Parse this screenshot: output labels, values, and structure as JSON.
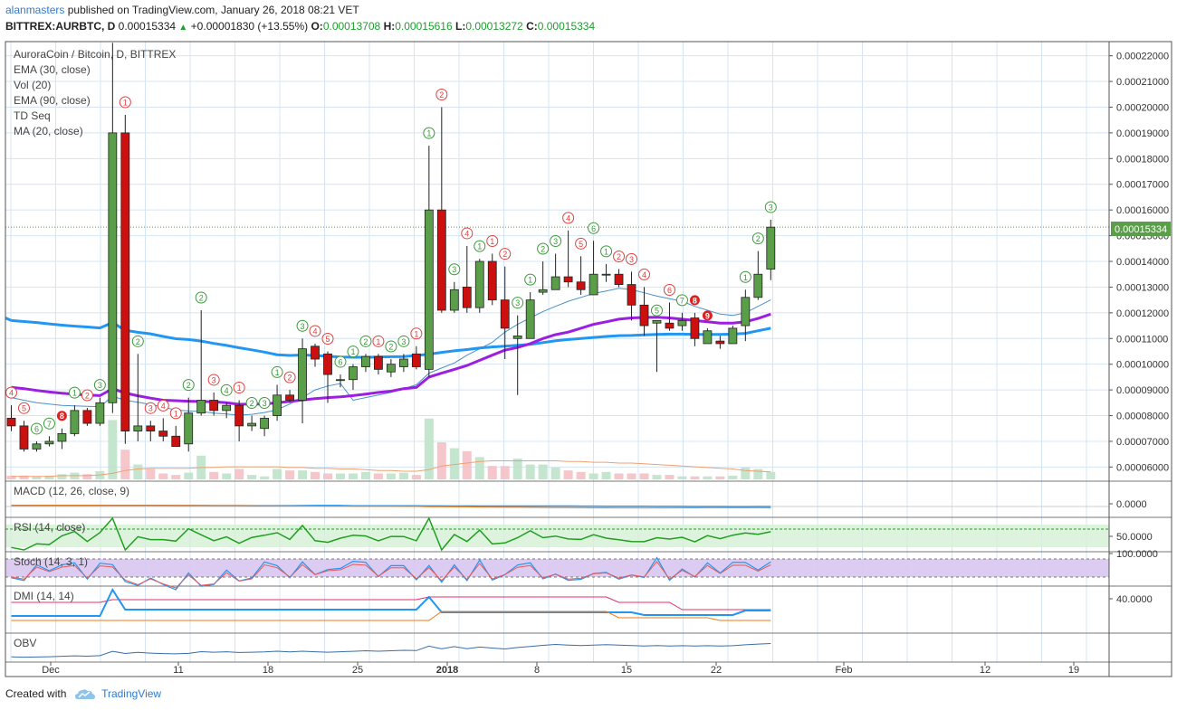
{
  "header": {
    "author": "alanmasters",
    "published_text": "published on TradingView.com, January 26, 2018 08:21 VET",
    "symbol": "BITTREX:AURBTC, D",
    "last": "0.00015334",
    "change": "+0.00001830 (+13.55%)",
    "o_label": "O:",
    "o_value": "0.00013708",
    "h_label": "H:",
    "h_value": "0.00015616",
    "l_label": "L:",
    "l_value": "0.00013272",
    "c_label": "C:",
    "c_value": "0.00015334"
  },
  "legend": [
    "AuroraCoin / Bitcoin, D, BITTREX",
    "EMA (30, close)",
    "Vol (20)",
    "EMA (90, close)",
    "TD Seq",
    "MA (20, close)"
  ],
  "price_tag": "0.00015334",
  "footer": {
    "created_with": "Created with",
    "brand": "TradingView"
  },
  "colors": {
    "up": "#5a9e4a",
    "down": "#cc1010",
    "ema30": "#2196f3",
    "ema90": "#9c1ee0",
    "ma20": "#4a90c8",
    "macd": "#2196f3",
    "signal": "#f07a1a",
    "rsi": "#1ea01e",
    "stoch_k": "#2196f3",
    "stoch_d": "#e85a5a",
    "di_plus": "#2196f3",
    "di_minus": "#f07a1a",
    "adx": "#e0306a",
    "obv": "#3a6ea8"
  },
  "chart_data": {
    "type": "candlestick",
    "x_ticks": [
      "Dec",
      "11",
      "18",
      "25",
      "2018",
      "8",
      "15",
      "22",
      "Feb",
      "12",
      "19"
    ],
    "y_ticks": [
      "0.00006000",
      "0.00007000",
      "0.00008000",
      "0.00009000",
      "0.00010000",
      "0.00011000",
      "0.00012000",
      "0.00013000",
      "0.00014000",
      "0.00015000",
      "0.00016000",
      "0.00017000",
      "0.00018000",
      "0.00019000",
      "0.00020000",
      "0.00021000",
      "0.00022000"
    ],
    "ylim": [
      5.45e-05,
      0.0002255
    ],
    "candles": [
      [
        7.9e-05,
        8.4e-05,
        7.4e-05,
        7.6e-05
      ],
      [
        7.6e-05,
        7.8e-05,
        6.6e-05,
        6.7e-05
      ],
      [
        6.7e-05,
        7e-05,
        6.6e-05,
        6.9e-05
      ],
      [
        6.9e-05,
        7.2e-05,
        6.8e-05,
        7e-05
      ],
      [
        7e-05,
        7.5e-05,
        6.7e-05,
        7.3e-05
      ],
      [
        7.3e-05,
        8.4e-05,
        7.2e-05,
        8.2e-05
      ],
      [
        8.2e-05,
        8.3e-05,
        7.6e-05,
        7.7e-05
      ],
      [
        7.7e-05,
        8.7e-05,
        7.6e-05,
        8.5e-05
      ],
      [
        8.5e-05,
        0.000225,
        8.1e-05,
        0.00019
      ],
      [
        0.00019,
        0.000197,
        6.9e-05,
        7.4e-05
      ],
      [
        7.4e-05,
        0.000104,
        7e-05,
        7.6e-05
      ],
      [
        7.6e-05,
        7.8e-05,
        7e-05,
        7.4e-05
      ],
      [
        7.4e-05,
        7.9e-05,
        7e-05,
        7.2e-05
      ],
      [
        7.2e-05,
        7.6e-05,
        6.8e-05,
        6.8e-05
      ],
      [
        6.9e-05,
        8.7e-05,
        6.6e-05,
        8.1e-05
      ],
      [
        8.1e-05,
        0.000121,
        8e-05,
        8.6e-05
      ],
      [
        8.6e-05,
        8.9e-05,
        8e-05,
        8.2e-05
      ],
      [
        8.2e-05,
        8.5e-05,
        7.9e-05,
        8.4e-05
      ],
      [
        8.4e-05,
        8.6e-05,
        7e-05,
        7.6e-05
      ],
      [
        7.6e-05,
        8e-05,
        7.4e-05,
        7.7e-05
      ],
      [
        7.5e-05,
        8e-05,
        7.2e-05,
        7.9e-05
      ],
      [
        8e-05,
        9.2e-05,
        7.8e-05,
        8.8e-05
      ],
      [
        8.8e-05,
        9e-05,
        8.5e-05,
        8.6e-05
      ],
      [
        8.6e-05,
        0.00011,
        7.7e-05,
        0.000106
      ],
      [
        0.000107,
        0.000108,
        9.9e-05,
        0.000102
      ],
      [
        0.000104,
        0.000105,
        8.5e-05,
        9.6e-05
      ],
      [
        9.4e-05,
        9.6e-05,
        9.1e-05,
        9.4e-05
      ],
      [
        9.4e-05,
        0.0001,
        9e-05,
        9.9e-05
      ],
      [
        9.9e-05,
        0.000104,
        9.7e-05,
        0.000103
      ],
      [
        0.000103,
        0.000104,
        9.6e-05,
        9.8e-05
      ],
      [
        9.7e-05,
        0.000102,
        9.5e-05,
        0.0001
      ],
      [
        9.9e-05,
        0.000104,
        9.7e-05,
        0.000102
      ],
      [
        0.000104,
        0.000107,
        9.8e-05,
        9.9e-05
      ],
      [
        9.8e-05,
        0.000185,
        9.5e-05,
        0.00016
      ],
      [
        0.00016,
        0.0002,
        0.00012,
        0.000121
      ],
      [
        0.000121,
        0.000132,
        0.00012,
        0.000129
      ],
      [
        0.00013,
        0.000146,
        0.00012,
        0.000122
      ],
      [
        0.000122,
        0.000141,
        0.00012,
        0.00014
      ],
      [
        0.00014,
        0.000143,
        0.000123,
        0.000125
      ],
      [
        0.000125,
        0.000138,
        0.000102,
        0.000114
      ],
      [
        0.00011,
        0.000119,
        8.8e-05,
        0.000111
      ],
      [
        0.00011,
        0.000128,
        0.00011,
        0.000125
      ],
      [
        0.000128,
        0.00014,
        0.000127,
        0.000129
      ],
      [
        0.000129,
        0.000143,
        0.000129,
        0.000134
      ],
      [
        0.000134,
        0.000152,
        0.00013,
        0.000132
      ],
      [
        0.000132,
        0.000142,
        0.000127,
        0.000129
      ],
      [
        0.000127,
        0.000148,
        0.000127,
        0.000135
      ],
      [
        0.000135,
        0.000139,
        0.000132,
        0.000135
      ],
      [
        0.000135,
        0.000137,
        0.00013,
        0.000131
      ],
      [
        0.000131,
        0.000136,
        0.000117,
        0.000123
      ],
      [
        0.000123,
        0.00013,
        0.000111,
        0.000115
      ],
      [
        0.000116,
        0.000116,
        9.7e-05,
        0.000117
      ],
      [
        0.000116,
        0.000124,
        0.000113,
        0.000114
      ],
      [
        0.000115,
        0.00012,
        0.000113,
        0.000117
      ],
      [
        0.000118,
        0.00012,
        0.000107,
        0.00011
      ],
      [
        0.000108,
        0.000114,
        0.000108,
        0.000113
      ],
      [
        0.000109,
        0.000111,
        0.000106,
        0.000108
      ],
      [
        0.000108,
        0.000115,
        0.000108,
        0.000114
      ],
      [
        0.000115,
        0.000129,
        0.000109,
        0.000126
      ],
      [
        0.000126,
        0.000144,
        0.000125,
        0.000135
      ],
      [
        0.000137,
        0.0001562,
        0.0001327,
        0.0001533
      ]
    ],
    "ema30": [
      0.000117,
      0.0001166,
      0.0001162,
      0.0001157,
      0.0001152,
      0.0001148,
      0.0001145,
      0.0001141,
      0.0001162,
      0.0001132,
      0.0001124,
      0.0001118,
      0.0001108,
      0.0001099,
      0.0001096,
      0.000109,
      0.0001081,
      0.0001073,
      0.0001064,
      0.0001056,
      0.0001047,
      0.0001037,
      0.0001034,
      0.0001036,
      0.0001034,
      0.0001031,
      0.0001028,
      0.0001027,
      0.0001027,
      0.0001028,
      0.0001029,
      0.000103,
      0.0001034,
      0.0001039,
      0.0001046,
      0.0001052,
      0.0001057,
      0.0001063,
      0.0001067,
      0.000107,
      0.0001074,
      0.0001077,
      0.0001084,
      0.0001091,
      0.0001096,
      0.00011,
      0.0001104,
      0.0001108,
      0.0001111,
      0.0001112,
      0.0001114,
      0.0001116,
      0.0001117,
      0.0001117,
      0.0001116,
      0.0001116,
      0.0001116,
      0.0001117,
      0.000112,
      0.000113,
      0.000114
    ],
    "ema90": [
      9.1e-05,
      9.05e-05,
      8.98e-05,
      8.92e-05,
      8.87e-05,
      8.83e-05,
      8.8e-05,
      8.78e-05,
      9.05e-05,
      8.88e-05,
      8.77e-05,
      8.68e-05,
      8.6e-05,
      8.58e-05,
      8.56e-05,
      8.55e-05,
      8.54e-05,
      8.5e-05,
      8.44e-05,
      8.45e-05,
      8.45e-05,
      8.5e-05,
      8.55e-05,
      8.61e-05,
      8.66e-05,
      8.7e-05,
      8.73e-05,
      8.78e-05,
      8.84e-05,
      8.9e-05,
      8.95e-05,
      9.05e-05,
      9.1e-05,
      9.5e-05,
      9.65e-05,
      9.8e-05,
      9.95e-05,
      0.0001015,
      0.0001035,
      0.0001055,
      0.0001065,
      0.000108,
      0.00011,
      0.0001115,
      0.0001125,
      0.000114,
      0.0001155,
      0.0001165,
      0.0001175,
      0.000118,
      0.0001182,
      0.0001183,
      0.000118,
      0.0001175,
      0.000117,
      0.0001165,
      0.000116,
      0.000116,
      0.0001165,
      0.0001178,
      0.0001195
    ],
    "ma20": [
      8.7e-05,
      8.6e-05,
      8.5e-05,
      8.45e-05,
      8.4e-05,
      8.38e-05,
      8.36e-05,
      8.35e-05,
      8.75e-05,
      8.6e-05,
      8.52e-05,
      8.43e-05,
      8.33e-05,
      8.22e-05,
      8.18e-05,
      8.16e-05,
      8.1e-05,
      8.06e-05,
      8.02e-05,
      8.05e-05,
      8.12e-05,
      8.23e-05,
      8.45e-05,
      8.7e-05,
      9e-05,
      9.15e-05,
      9.25e-05,
      8.6e-05,
      8.7e-05,
      8.8e-05,
      8.9e-05,
      9.05e-05,
      9.2e-05,
      9.65e-05,
      9.85e-05,
      0.0001005,
      0.0001035,
      0.000106,
      0.0001085,
      0.0001125,
      0.0001155,
      0.000118,
      0.0001205,
      0.0001225,
      0.0001245,
      0.000126,
      0.0001275,
      0.0001285,
      0.0001295,
      0.000129,
      0.0001278,
      0.0001265,
      0.0001255,
      0.0001245,
      0.0001225,
      0.000121,
      0.0001195,
      0.000119,
      0.00012,
      0.0001225,
      0.000125
    ],
    "volume": [
      5,
      5,
      4,
      5,
      7,
      9,
      7,
      11,
      80,
      40,
      20,
      14,
      8,
      6,
      9,
      32,
      10,
      8,
      14,
      6,
      4,
      14,
      12,
      12,
      10,
      8,
      8,
      8,
      10,
      8,
      8,
      9,
      6,
      82,
      50,
      42,
      38,
      30,
      18,
      18,
      28,
      20,
      20,
      16,
      12,
      10,
      8,
      10,
      8,
      8,
      8,
      6,
      6,
      4,
      4,
      4,
      4,
      5,
      16,
      14,
      10
    ],
    "vol_ma": [
      4,
      4,
      4,
      4,
      5,
      5,
      5,
      6,
      8,
      12,
      14,
      15,
      15,
      15,
      15,
      16,
      16,
      17,
      17,
      17,
      17,
      17,
      16,
      16,
      15,
      15,
      14,
      14,
      13,
      12,
      12,
      11,
      11,
      13,
      18,
      20,
      22,
      24,
      25,
      25,
      25,
      25,
      25,
      25,
      24,
      24,
      23,
      23,
      22,
      22,
      21,
      20,
      19,
      18,
      17,
      16,
      15,
      14,
      12,
      11,
      10
    ],
    "td_labels": [
      {
        "i": 0,
        "n": "4",
        "pos": "up"
      },
      {
        "i": 1,
        "n": "5",
        "pos": "up"
      },
      {
        "i": 2,
        "n": "6",
        "pos": "up"
      },
      {
        "i": 3,
        "n": "7",
        "pos": "up"
      },
      {
        "i": 4,
        "n": "8",
        "pos": "up"
      },
      {
        "i": 5,
        "n": "1",
        "pos": "up"
      },
      {
        "i": 6,
        "n": "2",
        "pos": "up"
      },
      {
        "i": 7,
        "n": "3",
        "pos": "up"
      },
      {
        "i": 8,
        "n": "4",
        "pos": "up"
      },
      {
        "i": 9,
        "n": "1",
        "pos": "up"
      },
      {
        "i": 10,
        "n": "2",
        "pos": "up"
      },
      {
        "i": 11,
        "n": "3",
        "pos": "up"
      },
      {
        "i": 12,
        "n": "4",
        "pos": "up"
      },
      {
        "i": 13,
        "n": "1",
        "pos": "up"
      },
      {
        "i": 14,
        "n": "2",
        "pos": "up"
      },
      {
        "i": 15,
        "n": "2",
        "pos": "up"
      },
      {
        "i": 16,
        "n": "3",
        "pos": "up"
      },
      {
        "i": 17,
        "n": "4",
        "pos": "up"
      },
      {
        "i": 18,
        "n": "1",
        "pos": "up"
      },
      {
        "i": 19,
        "n": "2",
        "pos": "up"
      },
      {
        "i": 20,
        "n": "3",
        "pos": "up"
      },
      {
        "i": 21,
        "n": "1",
        "pos": "up"
      },
      {
        "i": 22,
        "n": "2",
        "pos": "up"
      },
      {
        "i": 23,
        "n": "3",
        "pos": "up"
      },
      {
        "i": 24,
        "n": "4",
        "pos": "up"
      },
      {
        "i": 25,
        "n": "5",
        "pos": "up"
      },
      {
        "i": 26,
        "n": "6",
        "pos": "up"
      },
      {
        "i": 27,
        "n": "1",
        "pos": "up"
      },
      {
        "i": 28,
        "n": "2",
        "pos": "up"
      },
      {
        "i": 29,
        "n": "1",
        "pos": "up"
      },
      {
        "i": 30,
        "n": "2",
        "pos": "up"
      },
      {
        "i": 31,
        "n": "3",
        "pos": "up"
      },
      {
        "i": 32,
        "n": "1",
        "pos": "up"
      },
      {
        "i": 33,
        "n": "1",
        "pos": "up"
      },
      {
        "i": 34,
        "n": "2",
        "pos": "up"
      },
      {
        "i": 35,
        "n": "3",
        "pos": "up"
      },
      {
        "i": 36,
        "n": "4",
        "pos": "up"
      },
      {
        "i": 37,
        "n": "1",
        "pos": "up"
      },
      {
        "i": 38,
        "n": "1",
        "pos": "up"
      },
      {
        "i": 39,
        "n": "2",
        "pos": "up"
      },
      {
        "i": 40,
        "n": "3",
        "pos": "up"
      },
      {
        "i": 41,
        "n": "1",
        "pos": "up"
      },
      {
        "i": 42,
        "n": "2",
        "pos": "up"
      },
      {
        "i": 43,
        "n": "3",
        "pos": "up"
      },
      {
        "i": 44,
        "n": "4",
        "pos": "up"
      },
      {
        "i": 45,
        "n": "5",
        "pos": "up"
      },
      {
        "i": 46,
        "n": "6",
        "pos": "up"
      },
      {
        "i": 47,
        "n": "1",
        "pos": "up"
      },
      {
        "i": 48,
        "n": "2",
        "pos": "up"
      },
      {
        "i": 49,
        "n": "3",
        "pos": "up"
      },
      {
        "i": 50,
        "n": "4",
        "pos": "up"
      },
      {
        "i": 51,
        "n": "5",
        "pos": "up"
      },
      {
        "i": 52,
        "n": "6",
        "pos": "up"
      },
      {
        "i": 53,
        "n": "7",
        "pos": "up"
      },
      {
        "i": 54,
        "n": "8",
        "pos": "up"
      },
      {
        "i": 55,
        "n": "9",
        "pos": "up"
      },
      {
        "i": 58,
        "n": "1",
        "pos": "up"
      },
      {
        "i": 59,
        "n": "2",
        "pos": "up"
      },
      {
        "i": 60,
        "n": "3",
        "pos": "up"
      }
    ],
    "macd_label": "MACD (12, 26, close, 9)",
    "macd_ytick": "0.0000",
    "rsi_label": "RSI (14, close)",
    "rsi_ytick": "50.0000",
    "stoch_label": "Stoch (14, 3, 1)",
    "stoch_ytick": "100.0000",
    "dmi_label": "DMI (14, 14)",
    "dmi_ytick": "40.0000",
    "obv_label": "OBV"
  }
}
